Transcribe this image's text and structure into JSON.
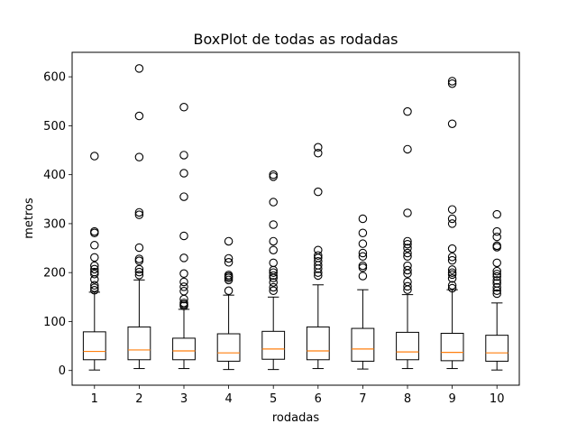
{
  "chart_data": {
    "type": "box",
    "title": "BoxPlot de todas as rodadas",
    "xlabel": "rodadas",
    "ylabel": "metros",
    "ylim": [
      -30,
      650
    ],
    "yticks": [
      0,
      100,
      200,
      300,
      400,
      500,
      600
    ],
    "grid": false,
    "colors": {
      "box": "#000000",
      "median": "#ff7f0e",
      "background": "#ffffff"
    },
    "categories": [
      "1",
      "2",
      "3",
      "4",
      "5",
      "6",
      "7",
      "8",
      "9",
      "10"
    ],
    "boxes": [
      {
        "label": "1",
        "whislo": 1,
        "q1": 22,
        "med": 39,
        "q3": 79,
        "whishi": 160,
        "fliers": [
          164,
          169,
          174,
          186,
          197,
          201,
          207,
          214,
          231,
          256,
          281,
          284,
          438
        ]
      },
      {
        "label": "2",
        "whislo": 4,
        "q1": 22,
        "med": 42,
        "q3": 89,
        "whishi": 185,
        "fliers": [
          195,
          201,
          207,
          224,
          228,
          251,
          318,
          323,
          436,
          520,
          617
        ]
      },
      {
        "label": "3",
        "whislo": 4,
        "q1": 22,
        "med": 40,
        "q3": 66,
        "whishi": 125,
        "fliers": [
          132,
          135,
          138,
          146,
          162,
          171,
          181,
          198,
          230,
          275,
          355,
          403,
          440,
          538
        ]
      },
      {
        "label": "4",
        "whislo": 2,
        "q1": 19,
        "med": 36,
        "q3": 75,
        "whishi": 154,
        "fliers": [
          163,
          185,
          189,
          192,
          195,
          221,
          229,
          264
        ]
      },
      {
        "label": "5",
        "whislo": 2,
        "q1": 23,
        "med": 44,
        "q3": 80,
        "whishi": 150,
        "fliers": [
          163,
          170,
          180,
          189,
          194,
          200,
          205,
          220,
          246,
          264,
          298,
          344,
          396,
          400
        ]
      },
      {
        "label": "6",
        "whislo": 4,
        "q1": 22,
        "med": 40,
        "q3": 89,
        "whishi": 175,
        "fliers": [
          194,
          200,
          208,
          215,
          223,
          230,
          235,
          246,
          365,
          444,
          456
        ]
      },
      {
        "label": "7",
        "whislo": 3,
        "q1": 19,
        "med": 44,
        "q3": 86,
        "whishi": 165,
        "fliers": [
          193,
          210,
          214,
          233,
          240,
          259,
          281,
          310
        ]
      },
      {
        "label": "8",
        "whislo": 4,
        "q1": 22,
        "med": 38,
        "q3": 78,
        "whishi": 155,
        "fliers": [
          165,
          172,
          181,
          198,
          205,
          214,
          233,
          240,
          250,
          258,
          264,
          322,
          452,
          529
        ]
      },
      {
        "label": "9",
        "whislo": 4,
        "q1": 20,
        "med": 37,
        "q3": 76,
        "whishi": 165,
        "fliers": [
          168,
          174,
          188,
          196,
          200,
          206,
          225,
          232,
          249,
          300,
          310,
          329,
          504,
          586,
          591
        ]
      },
      {
        "label": "10",
        "whislo": 1,
        "q1": 19,
        "med": 36,
        "q3": 72,
        "whishi": 138,
        "fliers": [
          157,
          163,
          170,
          178,
          184,
          192,
          197,
          203,
          220,
          252,
          255,
          273,
          284,
          319
        ]
      }
    ]
  }
}
